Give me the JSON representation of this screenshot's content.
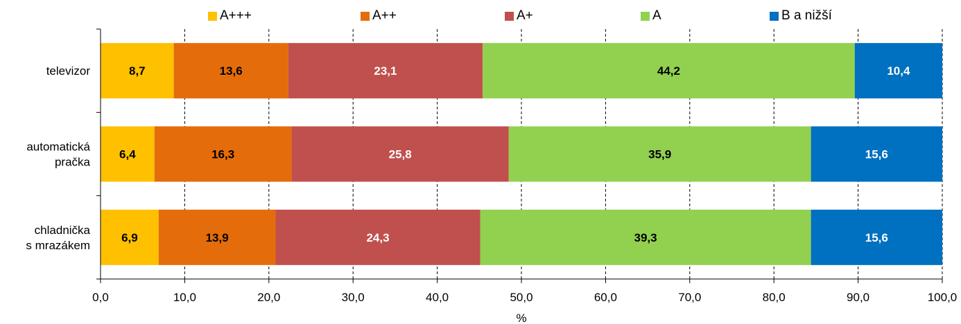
{
  "chart_data": {
    "type": "bar",
    "orientation": "horizontal",
    "stacked": true,
    "title": "",
    "xlabel": "%",
    "ylabel": "",
    "xlim": [
      0,
      100
    ],
    "x_ticks": [
      "0,0",
      "10,0",
      "20,0",
      "30,0",
      "40,0",
      "50,0",
      "60,0",
      "70,0",
      "80,0",
      "90,0",
      "100,0"
    ],
    "grid": "vertical dashed",
    "legend_position": "top",
    "categories": [
      [
        "televizor"
      ],
      [
        "automatická",
        "pračka"
      ],
      [
        "chladnička",
        "s mrazákem"
      ]
    ],
    "series": [
      {
        "name": "A+++",
        "color": "#FFC000",
        "label_color": "#000000",
        "values": [
          8.7,
          6.4,
          6.9
        ],
        "labels": [
          "8,7",
          "6,4",
          "6,9"
        ]
      },
      {
        "name": "A++",
        "color": "#E46C0A",
        "label_color": "#000000",
        "values": [
          13.6,
          16.3,
          13.9
        ],
        "labels": [
          "13,6",
          "16,3",
          "13,9"
        ]
      },
      {
        "name": "A+",
        "color": "#C0504D",
        "label_color": "#FFFFFF",
        "values": [
          23.1,
          25.8,
          24.3
        ],
        "labels": [
          "23,1",
          "25,8",
          "24,3"
        ]
      },
      {
        "name": "A",
        "color": "#92D050",
        "label_color": "#000000",
        "values": [
          44.2,
          35.9,
          39.3
        ],
        "labels": [
          "44,2",
          "35,9",
          "39,3"
        ]
      },
      {
        "name": "B a nižší",
        "color": "#0070C0",
        "label_color": "#FFFFFF",
        "values": [
          10.4,
          15.6,
          15.6
        ],
        "labels": [
          "10,4",
          "15,6",
          "15,6"
        ]
      }
    ]
  }
}
